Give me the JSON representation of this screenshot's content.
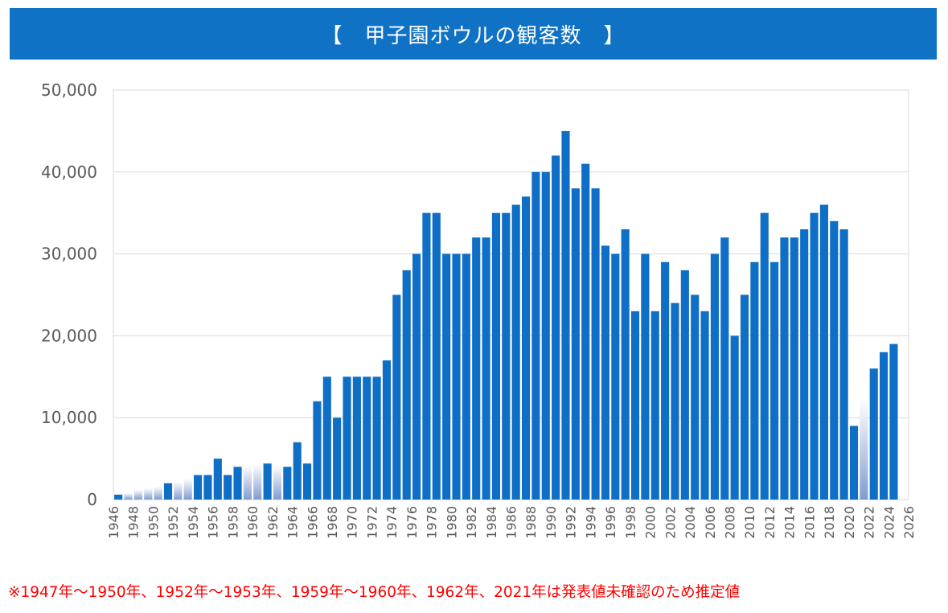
{
  "chart_data": {
    "type": "bar",
    "title": "【　甲子園ボウルの観客数　】",
    "xlabel": "",
    "ylabel": "",
    "ylim": [
      0,
      50000
    ],
    "yticks": [
      "50,000",
      "40,000",
      "30,000",
      "20,000",
      "10,000",
      "0"
    ],
    "xlim": [
      1946,
      2026
    ],
    "xticks": [
      "1946",
      "1948",
      "1950",
      "1952",
      "1954",
      "1956",
      "1958",
      "1960",
      "1962",
      "1964",
      "1966",
      "1968",
      "1970",
      "1972",
      "1974",
      "1976",
      "1978",
      "1980",
      "1982",
      "1984",
      "1986",
      "1988",
      "1990",
      "1992",
      "1994",
      "1996",
      "1998",
      "2000",
      "2002",
      "2004",
      "2006",
      "2008",
      "2010",
      "2012",
      "2014",
      "2016",
      "2018",
      "2020",
      "2022",
      "2024",
      "2026"
    ],
    "grid": true,
    "bar_color": "#0f6fc6",
    "estimated_color": "#8ea9db",
    "years": [
      1946,
      1947,
      1948,
      1949,
      1950,
      1951,
      1952,
      1953,
      1954,
      1955,
      1956,
      1957,
      1958,
      1959,
      1960,
      1961,
      1962,
      1963,
      1964,
      1965,
      1966,
      1967,
      1968,
      1969,
      1970,
      1971,
      1972,
      1973,
      1974,
      1975,
      1976,
      1977,
      1978,
      1979,
      1980,
      1981,
      1982,
      1983,
      1984,
      1985,
      1986,
      1987,
      1988,
      1989,
      1990,
      1991,
      1992,
      1993,
      1994,
      1995,
      1996,
      1997,
      1998,
      1999,
      2000,
      2001,
      2002,
      2003,
      2004,
      2005,
      2006,
      2007,
      2008,
      2009,
      2010,
      2011,
      2012,
      2013,
      2014,
      2015,
      2016,
      2017,
      2018,
      2019,
      2020,
      2021,
      2022,
      2023,
      2024
    ],
    "values": [
      600,
      800,
      1200,
      1400,
      1600,
      2000,
      2200,
      2600,
      3000,
      3000,
      5000,
      3000,
      4000,
      4200,
      4400,
      4400,
      4200,
      4000,
      7000,
      4400,
      12000,
      15000,
      10000,
      15000,
      15000,
      15000,
      15000,
      17000,
      25000,
      28000,
      30000,
      35000,
      35000,
      30000,
      30000,
      30000,
      32000,
      32000,
      35000,
      35000,
      36000,
      37000,
      40000,
      40000,
      42000,
      45000,
      38000,
      41000,
      38000,
      31000,
      30000,
      33000,
      23000,
      30000,
      23000,
      29000,
      24000,
      28000,
      25000,
      23000,
      30000,
      32000,
      20000,
      25000,
      29000,
      35000,
      29000,
      32000,
      32000,
      33000,
      35000,
      36000,
      34000,
      33000,
      9000,
      12500,
      16000,
      18000,
      19000
    ],
    "estimated_years": [
      1947,
      1948,
      1949,
      1950,
      1952,
      1953,
      1959,
      1960,
      1962,
      2021
    ]
  },
  "footnote": "※1947年～1950年、1952年～1953年、1959年～1960年、1962年、2021年は発表値未確認のため推定値"
}
